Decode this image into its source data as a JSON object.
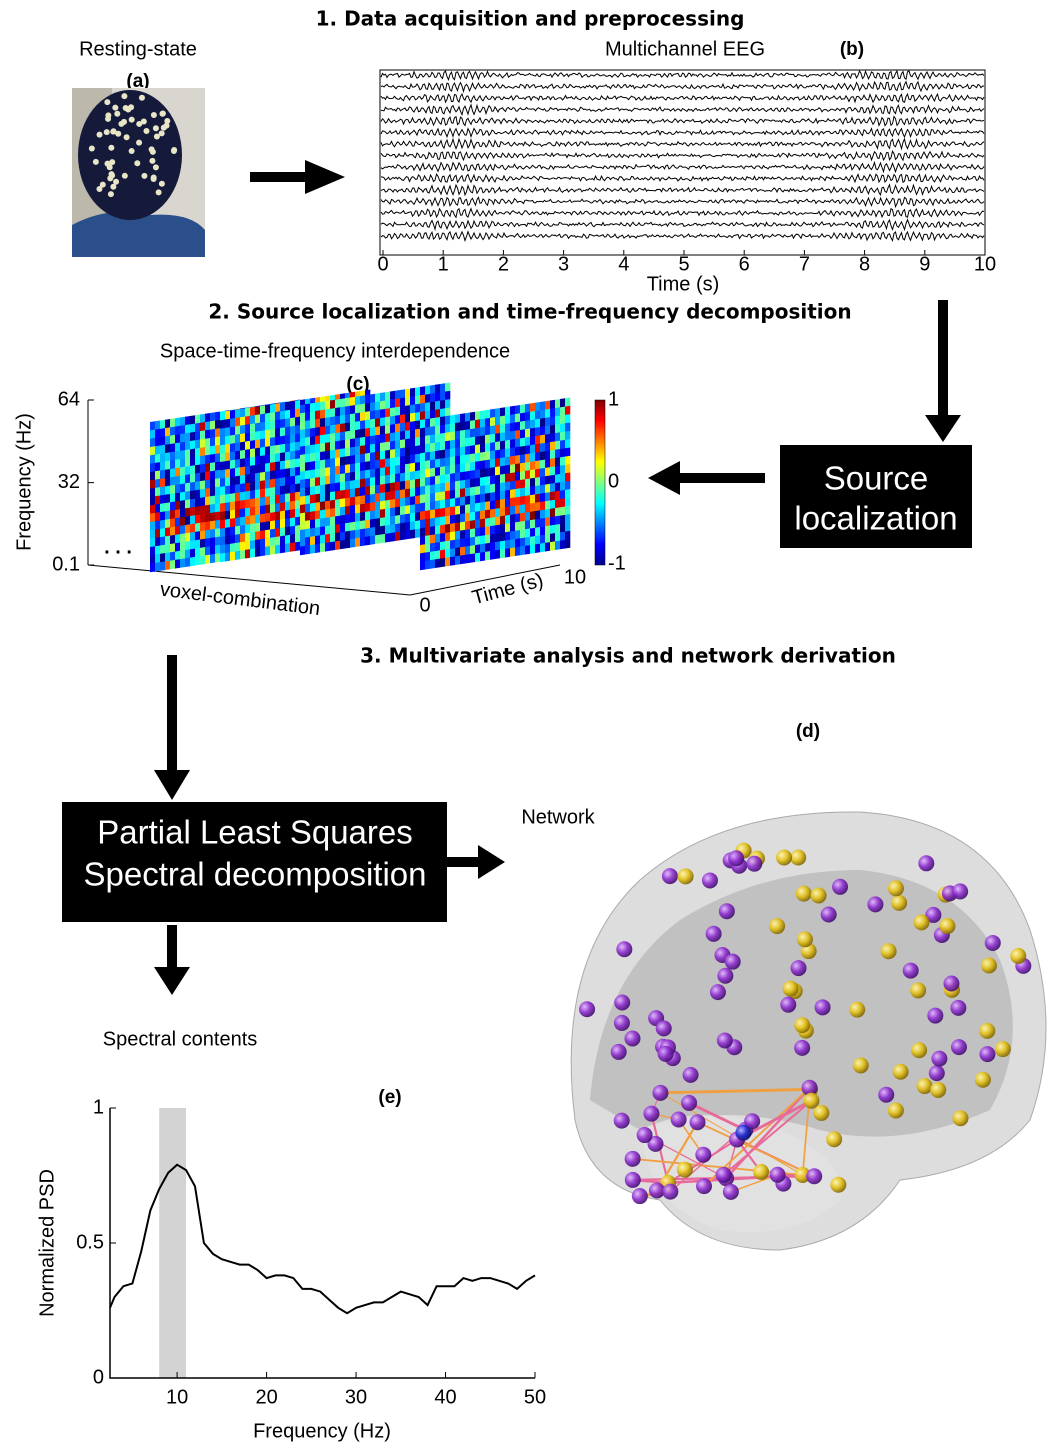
{
  "sections": [
    {
      "title": "1. Data acquisition and preprocessing"
    },
    {
      "title": "2. Source localization and time-frequency decomposition"
    },
    {
      "title": "3. Multivariate analysis and network derivation"
    }
  ],
  "panels": {
    "a": {
      "label": "(a)",
      "caption": "Resting-state"
    },
    "b": {
      "label": "(b)",
      "caption": "Multichannel EEG",
      "x_label": "Time (s)",
      "xlim": [
        0,
        10
      ],
      "xticks": [
        0,
        1,
        2,
        3,
        4,
        5,
        6,
        7,
        8,
        9,
        10
      ]
    },
    "c": {
      "label": "(c)",
      "caption": "Space-time-frequency interdependence",
      "y_label": "Frequency (Hz)",
      "ylim": [
        0.1,
        64
      ],
      "yticks": [
        0.1,
        32,
        64
      ],
      "depth_label": "voxel-combination",
      "ellipsis": ". . .",
      "time_label": "Time (s)",
      "time_ticks": [
        0,
        10
      ],
      "colorbar_ticks": [
        1,
        0,
        -1
      ]
    },
    "d": {
      "label": "(d)",
      "caption": "Network"
    },
    "e": {
      "label": "(e)",
      "caption": "Spectral contents",
      "chart_data": {
        "type": "line",
        "x_label": "Frequency (Hz)",
        "y_label": "Normalized PSD",
        "xlim": [
          2.5,
          50
        ],
        "ylim": [
          0,
          1
        ],
        "xticks": [
          10,
          20,
          30,
          40,
          50
        ],
        "yticks": [
          0,
          0.5,
          1
        ],
        "band": [
          8,
          11
        ],
        "band_color": "#d3d3d3",
        "color": "#000000",
        "x": [
          2.5,
          3,
          4,
          5,
          6,
          7,
          8,
          9,
          10,
          11,
          12,
          13,
          14,
          15,
          16,
          17,
          18,
          19,
          20,
          21,
          22,
          23,
          24,
          25,
          26,
          27,
          28,
          29,
          30,
          31,
          32,
          33,
          34,
          35,
          36,
          37,
          38,
          39,
          40,
          41,
          42,
          43,
          44,
          45,
          46,
          47,
          48,
          49,
          50
        ],
        "values": [
          0.26,
          0.3,
          0.34,
          0.35,
          0.47,
          0.62,
          0.7,
          0.76,
          0.79,
          0.77,
          0.71,
          0.5,
          0.46,
          0.44,
          0.43,
          0.42,
          0.42,
          0.4,
          0.37,
          0.38,
          0.38,
          0.37,
          0.33,
          0.33,
          0.32,
          0.29,
          0.26,
          0.24,
          0.26,
          0.27,
          0.28,
          0.28,
          0.3,
          0.32,
          0.31,
          0.3,
          0.27,
          0.34,
          0.34,
          0.34,
          0.37,
          0.36,
          0.37,
          0.37,
          0.36,
          0.35,
          0.33,
          0.36,
          0.38
        ]
      }
    }
  },
  "boxes": {
    "source": [
      "Source",
      "localization"
    ],
    "pls": [
      "Partial Least Squares",
      "Spectral decomposition"
    ]
  }
}
